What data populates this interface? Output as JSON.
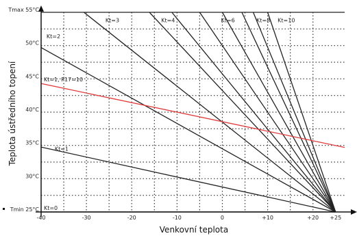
{
  "chart_data": {
    "type": "line",
    "xlabel": "Venkovní teplota",
    "ylabel": "Teplota ústředního topení",
    "xlim": [
      -40,
      27
    ],
    "ylim": [
      25,
      55
    ],
    "x_ticks": [
      {
        "value": -40,
        "label": "-40"
      },
      {
        "value": -30,
        "label": "-30"
      },
      {
        "value": -20,
        "label": "-20"
      },
      {
        "value": -10,
        "label": "-10"
      },
      {
        "value": 0,
        "label": "0"
      },
      {
        "value": 10,
        "label": "+10"
      },
      {
        "value": 20,
        "label": "+20"
      },
      {
        "value": 25,
        "label": "+25"
      }
    ],
    "y_ticks": [
      {
        "value": 25,
        "label": "Tmin  25°C"
      },
      {
        "value": 30,
        "label": "30°C"
      },
      {
        "value": 35,
        "label": "35°C"
      },
      {
        "value": 40,
        "label": "40°C"
      },
      {
        "value": 45,
        "label": "45°C"
      },
      {
        "value": 50,
        "label": "50°C"
      },
      {
        "value": 55,
        "label": "Tmax  55°C"
      }
    ],
    "x_grid": [
      -35,
      -30,
      -25,
      -20,
      -15,
      -10,
      -5,
      0,
      5,
      10,
      15,
      20
    ],
    "y_grid": [
      27.5,
      30,
      32.5,
      35,
      37.5,
      40,
      42.5,
      45,
      47.5,
      50,
      52.5
    ],
    "pivot": {
      "x": 25,
      "y": 25
    },
    "red_color": "#e03a3a",
    "line_color": "#222222",
    "series": [
      {
        "name": "Kt=0",
        "slope": 0,
        "label_x": -39.4,
        "label_y": 25.3
      },
      {
        "name": "Kt=1",
        "slope": 0.15,
        "label_x": -37.0,
        "label_y": 34.2
      },
      {
        "name": "Kt=2",
        "slope": 0.38,
        "label_x": -38.8,
        "label_y": 51.1
      },
      {
        "name": "Kt=3",
        "slope": 0.54,
        "label_x": -25.8,
        "label_y": 53.5
      },
      {
        "name": "Kt=4",
        "slope": 0.73,
        "label_x": -13.5,
        "label_y": 53.5
      },
      {
        "name": "",
        "slope": 0.83
      },
      {
        "name": "Kt=6",
        "slope": 1.0,
        "label_x": -0.3,
        "label_y": 53.5
      },
      {
        "name": "",
        "slope": 1.2
      },
      {
        "name": "Kt=8",
        "slope": 1.45,
        "label_x": 7.5,
        "label_y": 53.5
      },
      {
        "name": "",
        "slope": 1.65
      },
      {
        "name": "Kt=10",
        "slope": 2.0,
        "label_x": 12.2,
        "label_y": 53.5
      },
      {
        "name": "Kt=1, P17=10",
        "red": true,
        "x_start": -40,
        "y_start": 44.3,
        "x_end": 27,
        "y_end": 34.7,
        "label_x": -39.4,
        "label_y": 44.6
      }
    ]
  }
}
